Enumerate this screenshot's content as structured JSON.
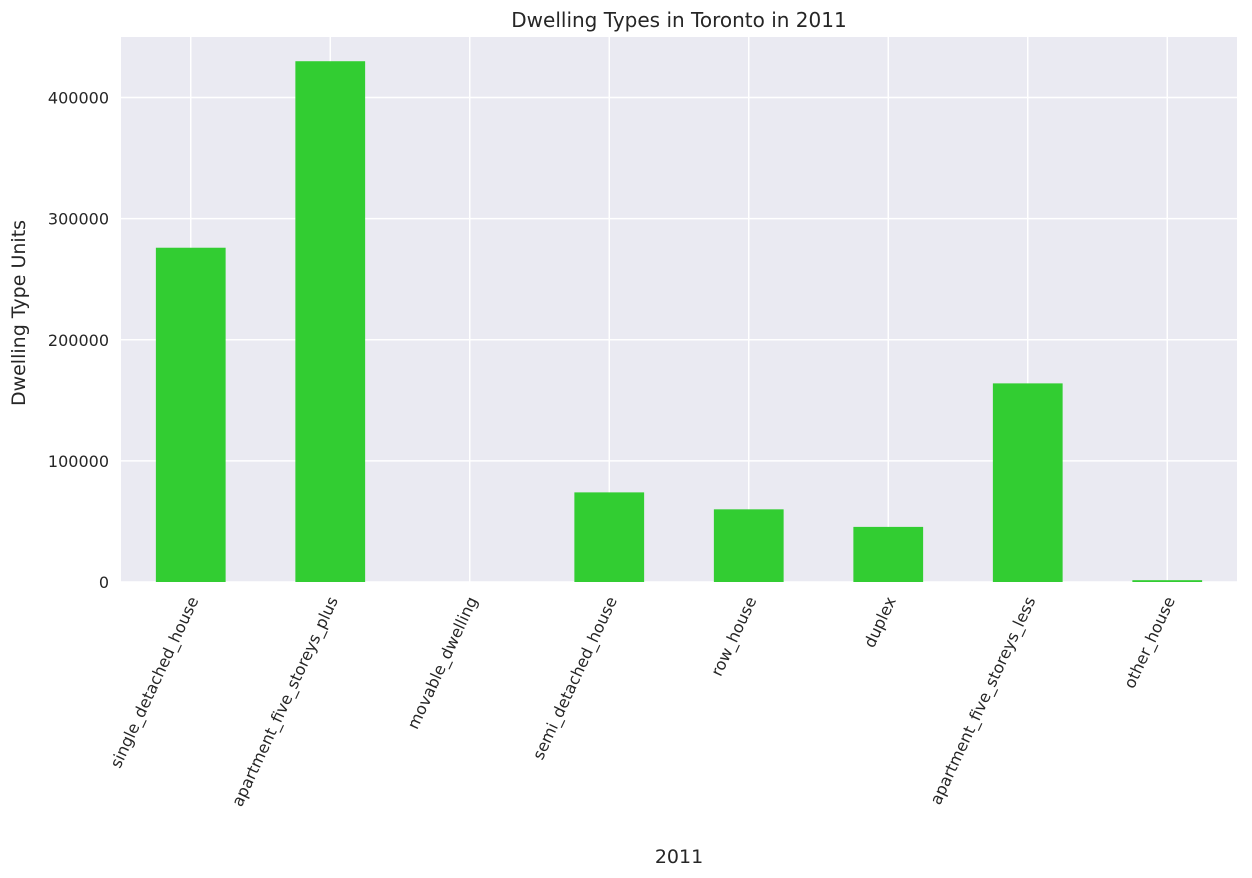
{
  "chart_data": {
    "type": "bar",
    "title": "Dwelling Types in Toronto in 2011",
    "xlabel": "2011",
    "ylabel": "Dwelling Type Units",
    "categories": [
      "single_detached_house",
      "apartment_five_storeys_plus",
      "movable_dwelling",
      "semi_detached_house",
      "row_house",
      "duplex",
      "apartment_five_storeys_less",
      "other_house"
    ],
    "values": [
      276000,
      430000,
      0,
      74000,
      60000,
      45500,
      164000,
      1500
    ],
    "yticks": [
      0,
      100000,
      200000,
      300000,
      400000
    ],
    "ylim": [
      0,
      450000
    ],
    "grid": true,
    "colors": {
      "bar": "#32cd32",
      "plot_bg": "#eaeaf2",
      "grid": "#ffffff",
      "text": "#262626"
    }
  }
}
